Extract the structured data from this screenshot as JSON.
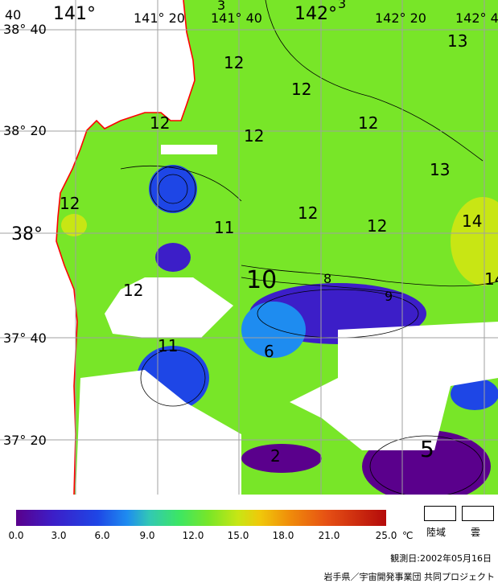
{
  "map": {
    "lon_labels": [
      "141°",
      "141° 20",
      "141° 40",
      "142°",
      "142° 20",
      "142° 4"
    ],
    "lat_labels": [
      "38° 40",
      "38° 20",
      "38°",
      "37° 40",
      "37° 20"
    ],
    "corner_label": "40",
    "top_contour_labels": [
      "3",
      "3"
    ],
    "contour_labels": [
      "12",
      "12",
      "12",
      "12",
      "12",
      "12",
      "12",
      "12",
      "12",
      "13",
      "13",
      "14",
      "14",
      "11",
      "11",
      "10",
      "8",
      "9",
      "6",
      "2",
      "5"
    ],
    "colors": {
      "coast": "#ff0000",
      "grid": "#a0a0a0",
      "cloud": "#ffffff"
    }
  },
  "colorbar": {
    "ticks": [
      "0.0",
      "3.0",
      "6.0",
      "9.0",
      "12.0",
      "15.0",
      "18.0",
      "21.0",
      "25.0"
    ],
    "unit": "℃"
  },
  "legend": {
    "land": "陸域",
    "cloud": "雲"
  },
  "observation_date": "観測日:2002年05月16日",
  "credit": "岩手県／宇宙開発事業団 共同プロジェクト"
}
